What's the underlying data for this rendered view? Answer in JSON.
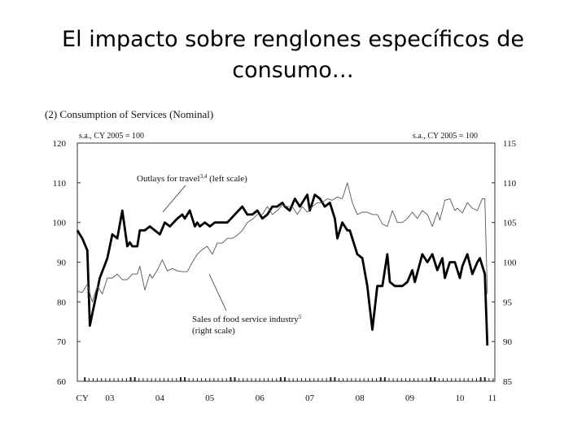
{
  "slide": {
    "title_line1": "El impacto sobre renglones específicos de",
    "title_line2": "consumo…"
  },
  "chart_data": {
    "type": "line",
    "title": "(2) Consumption of Services (Nominal)",
    "left_axis_label": "s.a., CY 2005 = 100",
    "right_axis_label": "s.a., CY 2005 = 100",
    "ylim_left": [
      60,
      120
    ],
    "ylim_right": [
      85,
      115
    ],
    "yticks_left": [
      60,
      70,
      80,
      90,
      100,
      110,
      120
    ],
    "yticks_right": [
      85,
      90,
      95,
      100,
      105,
      110,
      115
    ],
    "xlim": [
      2002.85,
      2011.2
    ],
    "x_tick_labels": [
      {
        "label": "CY",
        "x": 2002.95
      },
      {
        "label": "03",
        "x": 2003.5
      },
      {
        "label": "04",
        "x": 2004.5
      },
      {
        "label": "05",
        "x": 2005.5
      },
      {
        "label": "06",
        "x": 2006.5
      },
      {
        "label": "07",
        "x": 2007.5
      },
      {
        "label": "08",
        "x": 2008.5
      },
      {
        "label": "09",
        "x": 2009.5
      },
      {
        "label": "10",
        "x": 2010.5
      },
      {
        "label": "11",
        "x": 2011.15
      }
    ],
    "annotations": [
      {
        "series": "travel",
        "text": "Outlays for travel",
        "sup": "3,4",
        "after": " (left scale)"
      },
      {
        "series": "food",
        "text": "Sales of food service industry",
        "sup": "5",
        "line2": "(right scale)"
      }
    ],
    "series": [
      {
        "name": "Outlays for travel (left scale)",
        "axis": "left",
        "style": "thick",
        "x": [
          2002.85,
          2002.95,
          2003.05,
          2003.1,
          2003.15,
          2003.2,
          2003.3,
          2003.45,
          2003.55,
          2003.65,
          2003.75,
          2003.85,
          2003.9,
          2003.95,
          2004.05,
          2004.1,
          2004.2,
          2004.3,
          2004.4,
          2004.5,
          2004.6,
          2004.7,
          2004.85,
          2004.95,
          2005.0,
          2005.1,
          2005.2,
          2005.25,
          2005.3,
          2005.4,
          2005.5,
          2005.6,
          2005.75,
          2005.85,
          2006.0,
          2006.15,
          2006.25,
          2006.35,
          2006.45,
          2006.55,
          2006.65,
          2006.75,
          2006.85,
          2006.95,
          2007.0,
          2007.1,
          2007.2,
          2007.3,
          2007.45,
          2007.5,
          2007.6,
          2007.7,
          2007.8,
          2007.9,
          2008.0,
          2008.05,
          2008.15,
          2008.25,
          2008.3,
          2008.45,
          2008.55,
          2008.65,
          2008.75,
          2008.85,
          2008.95,
          2009.05,
          2009.1,
          2009.2,
          2009.3,
          2009.35,
          2009.45,
          2009.55,
          2009.6,
          2009.75,
          2009.85,
          2009.95,
          2010.05,
          2010.15,
          2010.2,
          2010.3,
          2010.4,
          2010.5,
          2010.55,
          2010.65,
          2010.75,
          2010.85,
          2010.9,
          2011.0,
          2011.05
        ],
        "values": [
          98,
          96,
          93,
          74,
          77,
          80,
          86,
          91,
          97,
          96,
          103,
          94,
          95,
          94,
          94,
          98,
          98,
          99,
          98,
          97,
          100,
          99,
          101,
          102,
          101,
          103,
          99,
          100,
          99,
          100,
          99,
          100,
          100,
          100,
          102,
          104,
          102,
          102,
          103,
          101,
          102,
          104,
          104,
          105,
          104,
          103,
          106,
          104,
          107,
          103,
          107,
          106,
          104,
          105,
          101,
          96,
          100,
          98,
          98,
          92,
          91,
          84,
          73,
          84,
          84,
          92,
          85,
          84,
          84,
          84,
          85,
          88,
          85,
          92,
          90,
          92,
          88,
          91,
          86,
          90,
          90,
          86,
          89,
          92,
          87,
          90,
          91,
          87,
          69
        ]
      },
      {
        "name": "Sales of food service industry (right scale)",
        "axis": "right",
        "style": "thin",
        "x": [
          2002.85,
          2002.95,
          2003.05,
          2003.15,
          2003.25,
          2003.35,
          2003.45,
          2003.55,
          2003.65,
          2003.75,
          2003.85,
          2003.95,
          2004.05,
          2004.1,
          2004.2,
          2004.3,
          2004.35,
          2004.45,
          2004.55,
          2004.65,
          2004.75,
          2004.85,
          2004.95,
          2005.05,
          2005.15,
          2005.25,
          2005.35,
          2005.45,
          2005.55,
          2005.65,
          2005.75,
          2005.85,
          2005.95,
          2006.05,
          2006.15,
          2006.25,
          2006.35,
          2006.45,
          2006.55,
          2006.65,
          2006.75,
          2006.85,
          2006.95,
          2007.05,
          2007.15,
          2007.25,
          2007.35,
          2007.45,
          2007.55,
          2007.65,
          2007.75,
          2007.85,
          2007.95,
          2008.05,
          2008.15,
          2008.25,
          2008.35,
          2008.45,
          2008.55,
          2008.65,
          2008.75,
          2008.85,
          2008.95,
          2009.05,
          2009.15,
          2009.25,
          2009.35,
          2009.45,
          2009.55,
          2009.65,
          2009.75,
          2009.85,
          2009.95,
          2010.05,
          2010.1,
          2010.2,
          2010.3,
          2010.4,
          2010.45,
          2010.55,
          2010.65,
          2010.75,
          2010.85,
          2010.95,
          2011.0,
          2011.05
        ],
        "values": [
          96.3,
          96.2,
          97.2,
          95.0,
          97.0,
          96.0,
          98.0,
          98.0,
          98.5,
          97.8,
          97.8,
          98.5,
          98.5,
          99.5,
          96.5,
          98.5,
          98.0,
          99.0,
          100.3,
          98.9,
          99.2,
          98.9,
          98.8,
          98.8,
          100.0,
          101.0,
          101.6,
          102.0,
          101.0,
          102.4,
          102.4,
          103.0,
          103.0,
          103.4,
          104.0,
          105.0,
          105.4,
          106.0,
          106.0,
          107.0,
          106.0,
          106.5,
          107.2,
          107.0,
          107.0,
          106.0,
          107.0,
          106.3,
          107.0,
          107.5,
          107.5,
          108.0,
          107.8,
          108.2,
          108.0,
          110.0,
          107.5,
          106.0,
          106.3,
          106.3,
          106.0,
          106.0,
          104.8,
          104.5,
          106.5,
          105.0,
          105.0,
          105.5,
          106.3,
          105.5,
          106.5,
          106.0,
          104.5,
          106.3,
          105.3,
          107.8,
          108.0,
          106.5,
          106.8,
          106.2,
          107.5,
          106.8,
          106.5,
          108.0,
          108.0,
          96.0
        ]
      }
    ]
  }
}
